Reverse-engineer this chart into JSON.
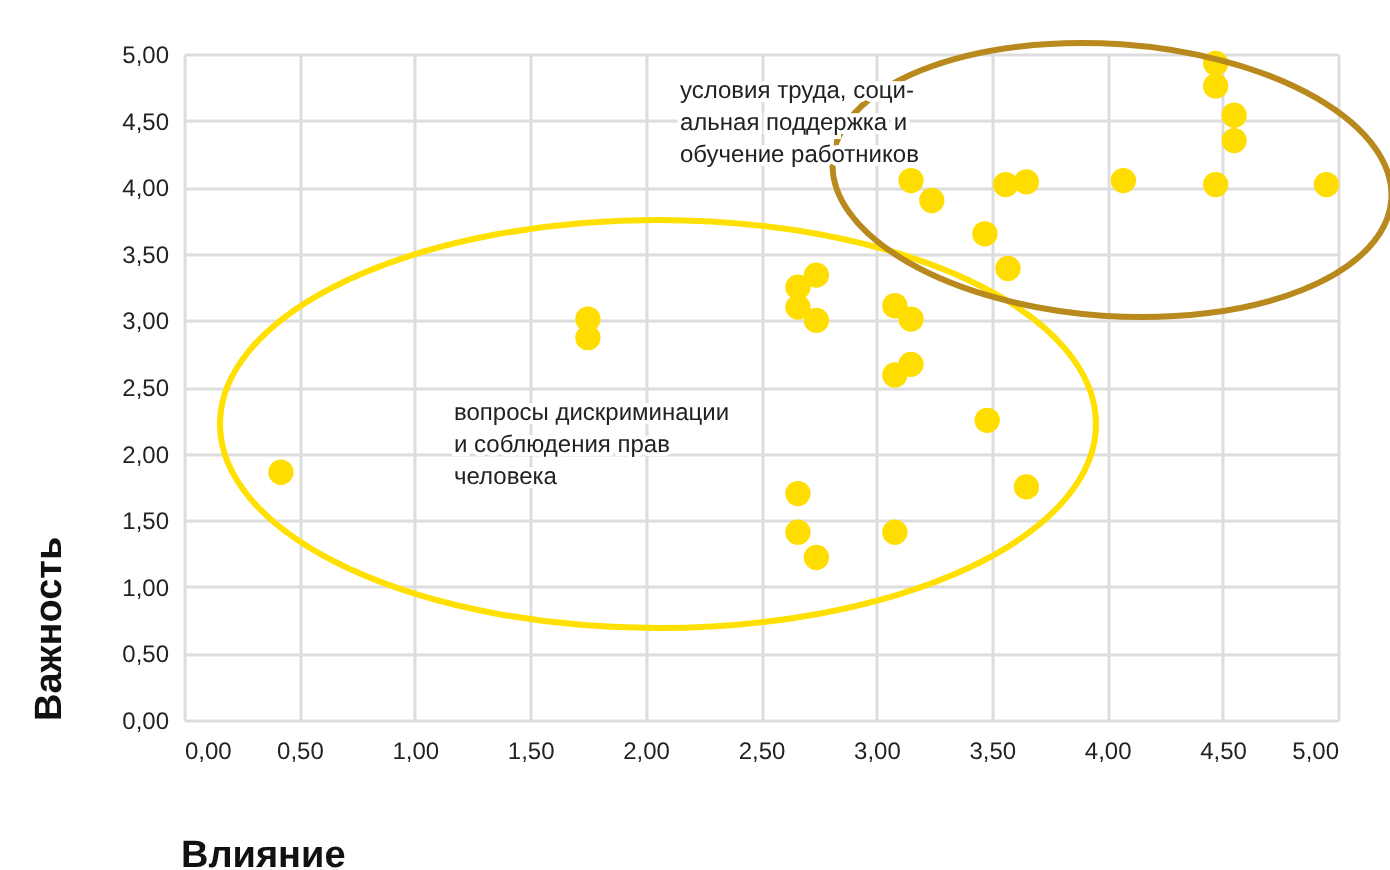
{
  "chart_data": {
    "type": "scatter",
    "xlabel": "Влияние",
    "ylabel": "Важность",
    "x": [
      0.42,
      1.75,
      1.75,
      2.66,
      2.66,
      2.74,
      2.74,
      2.66,
      2.66,
      2.74,
      3.08,
      3.15,
      3.15,
      3.08,
      3.48,
      3.08,
      3.65,
      3.15,
      3.24,
      3.56,
      3.65,
      3.47,
      3.57,
      4.07,
      4.47,
      4.47,
      4.55,
      4.55,
      4.47,
      4.95
    ],
    "series": [
      {
        "color": "#ffdd00",
        "values": [
          1.86,
          3.01,
          2.87,
          3.25,
          3.1,
          3.34,
          3.0,
          1.7,
          1.41,
          1.22,
          3.11,
          3.01,
          2.67,
          2.59,
          2.25,
          1.41,
          1.75,
          4.05,
          3.9,
          4.02,
          4.04,
          3.65,
          3.39,
          4.05,
          4.93,
          4.76,
          4.54,
          4.35,
          4.02,
          4.02
        ]
      }
    ],
    "xlim": [
      0,
      5
    ],
    "ylim": [
      0,
      5
    ],
    "xticks": [
      {
        "value": 0,
        "label": "0,00"
      },
      {
        "value": 0.5,
        "label": "0,50"
      },
      {
        "value": 1,
        "label": "1,00"
      },
      {
        "value": 1.5,
        "label": "1,50"
      },
      {
        "value": 2,
        "label": "2,00"
      },
      {
        "value": 2.5,
        "label": "2,50"
      },
      {
        "value": 3,
        "label": "3,00"
      },
      {
        "value": 3.5,
        "label": "3,50"
      },
      {
        "value": 4,
        "label": "4,00"
      },
      {
        "value": 4.5,
        "label": "4,50"
      },
      {
        "value": 5,
        "label": "5,00"
      }
    ],
    "yticks": [
      {
        "value": 0,
        "label": "0,00"
      },
      {
        "value": 0.5,
        "label": "0,50"
      },
      {
        "value": 1,
        "label": "1,00"
      },
      {
        "value": 1.5,
        "label": "1,50"
      },
      {
        "value": 2,
        "label": "2,00"
      },
      {
        "value": 2.5,
        "label": "2,50"
      },
      {
        "value": 3,
        "label": "3,00"
      },
      {
        "value": 3.5,
        "label": "3,50"
      },
      {
        "value": 4,
        "label": "4,00"
      },
      {
        "value": 4.5,
        "label": "4,50"
      },
      {
        "value": 5,
        "label": "5,00"
      }
    ],
    "grid": true,
    "marker": "circle",
    "annotations": [
      "условия труда, соци-\nальная поддержка и\nобучение работников",
      "вопросы дискриминации\nи соблюдения прав\nчеловека"
    ]
  }
}
